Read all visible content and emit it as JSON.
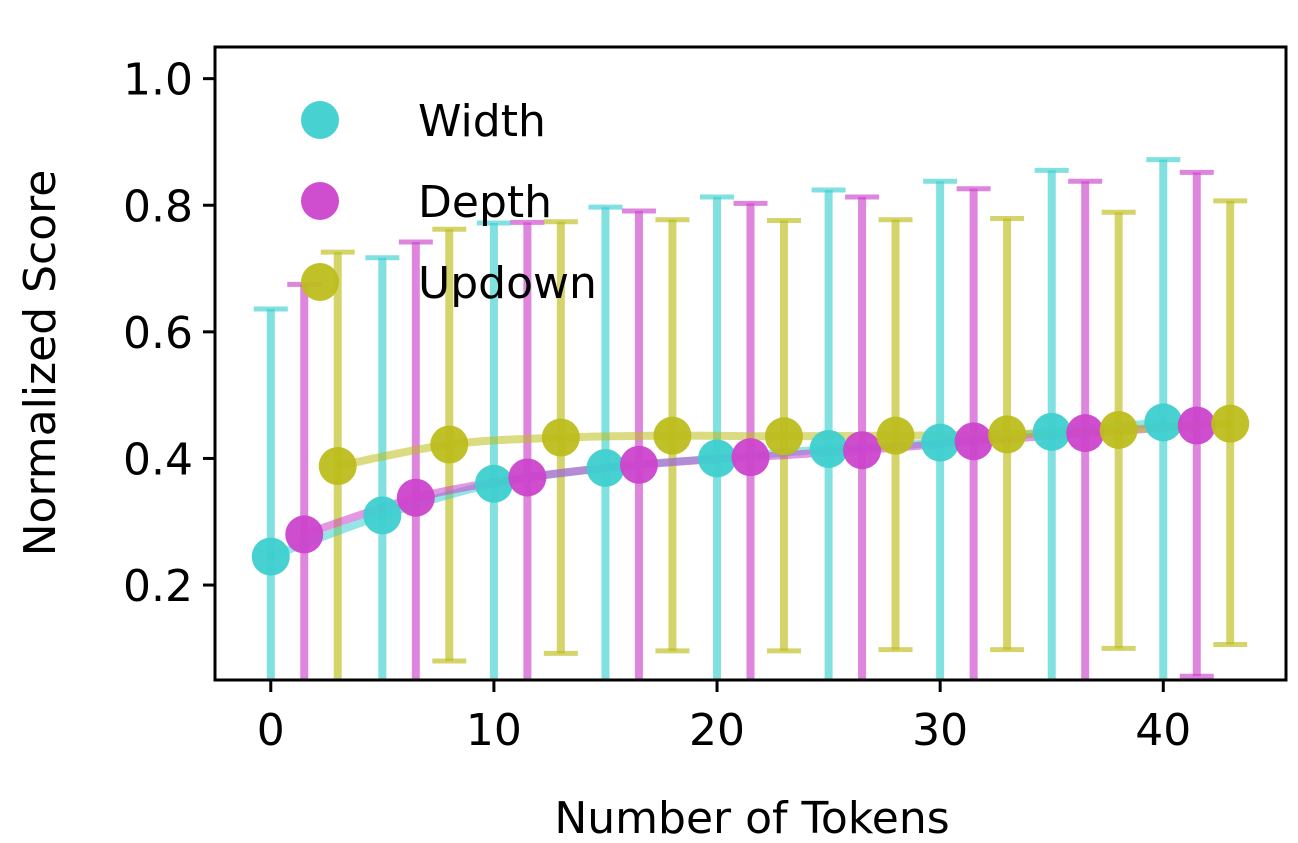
{
  "chart_data": {
    "type": "scatter",
    "title": "",
    "xlabel": "Number of Tokens",
    "ylabel": "Normalized Score",
    "xlim": [
      -2.5,
      45.5
    ],
    "ylim": [
      0.05,
      1.05
    ],
    "xticks": [
      0,
      10,
      20,
      30,
      40
    ],
    "yticks": [
      0.2,
      0.4,
      0.6,
      0.8,
      1.0
    ],
    "xtick_labels": [
      "0",
      "10",
      "20",
      "30",
      "40"
    ],
    "ytick_labels": [
      "0.2",
      "0.4",
      "0.6",
      "0.8",
      "1.0"
    ],
    "grid": false,
    "legend_position": "top-left",
    "series": [
      {
        "name": "Width",
        "color": "#3ecfcf",
        "x": [
          0,
          5,
          10,
          15,
          20,
          25,
          30,
          35,
          40
        ],
        "y": [
          0.245,
          0.31,
          0.36,
          0.385,
          0.4,
          0.415,
          0.425,
          0.442,
          0.457
        ],
        "err_low": [
          0.02,
          0.02,
          0.02,
          0.02,
          0.02,
          0.02,
          0.02,
          0.02,
          0.02
        ],
        "err_high": [
          0.636,
          0.717,
          0.772,
          0.797,
          0.813,
          0.824,
          0.838,
          0.855,
          0.872
        ]
      },
      {
        "name": "Depth",
        "color": "#cc44cc",
        "x": [
          1.5,
          6.5,
          11.5,
          16.5,
          21.5,
          26.5,
          31.5,
          36.5,
          41.5
        ],
        "y": [
          0.28,
          0.338,
          0.37,
          0.39,
          0.402,
          0.413,
          0.427,
          0.44,
          0.452
        ],
        "err_low": [
          0.02,
          0.02,
          0.02,
          0.02,
          0.02,
          0.02,
          0.02,
          0.02,
          0.056
        ],
        "err_high": [
          0.675,
          0.742,
          0.773,
          0.791,
          0.803,
          0.813,
          0.826,
          0.838,
          0.852
        ]
      },
      {
        "name": "Updown",
        "color": "#bdbd1c",
        "x": [
          3,
          8,
          13,
          18,
          23,
          28,
          33,
          38,
          43
        ],
        "y": [
          0.388,
          0.422,
          0.433,
          0.436,
          0.435,
          0.436,
          0.438,
          0.445,
          0.455
        ],
        "err_low": [
          0.02,
          0.08,
          0.092,
          0.096,
          0.096,
          0.098,
          0.098,
          0.1,
          0.106
        ],
        "err_high": [
          0.726,
          0.762,
          0.774,
          0.777,
          0.776,
          0.777,
          0.779,
          0.789,
          0.807
        ]
      }
    ]
  }
}
